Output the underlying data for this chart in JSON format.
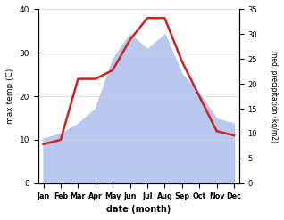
{
  "months": [
    "Jan",
    "Feb",
    "Mar",
    "Apr",
    "May",
    "Jun",
    "Jul",
    "Aug",
    "Sep",
    "Oct",
    "Nov",
    "Dec"
  ],
  "temp": [
    9,
    10,
    24,
    24,
    26,
    33,
    38,
    38,
    28,
    20,
    12,
    11
  ],
  "precip": [
    9,
    10,
    12,
    15,
    25,
    30,
    27,
    30,
    22,
    18,
    13,
    12
  ],
  "temp_color": "#cc2222",
  "precip_fill_color": "#b8c8ee",
  "ylim_left": [
    0,
    40
  ],
  "ylim_right": [
    0,
    35
  ],
  "xlabel": "date (month)",
  "ylabel_left": "max temp (C)",
  "ylabel_right": "med. precipitation (kg/m2)",
  "bg_color": "#ffffff",
  "grid_color": "#d0d0d0"
}
